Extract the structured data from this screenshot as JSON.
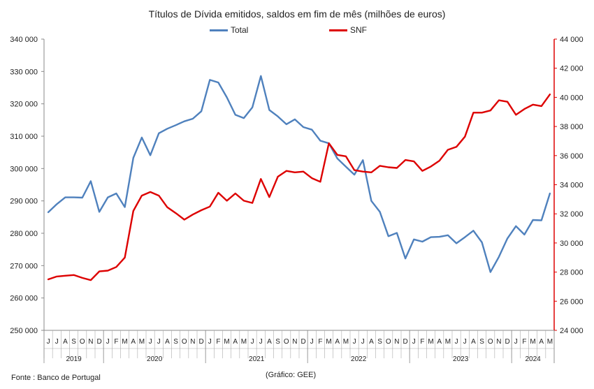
{
  "chart_data": {
    "type": "line",
    "title": "Títulos de Dívida emitidos, saldos em fim de mês  (milhões de euros)",
    "months": [
      "J",
      "J",
      "A",
      "S",
      "O",
      "N",
      "D",
      "J",
      "F",
      "M",
      "A",
      "M",
      "J",
      "J",
      "A",
      "S",
      "O",
      "N",
      "D",
      "J",
      "F",
      "M",
      "A",
      "M",
      "J",
      "J",
      "A",
      "S",
      "O",
      "N",
      "D",
      "J",
      "F",
      "M",
      "A",
      "M",
      "J",
      "J",
      "A",
      "S",
      "O",
      "N",
      "D",
      "J",
      "F",
      "M",
      "A",
      "M",
      "J",
      "J",
      "A",
      "S",
      "O",
      "N",
      "D",
      "J",
      "F",
      "M",
      "A",
      "M"
    ],
    "years": [
      {
        "label": "2019",
        "count": 7
      },
      {
        "label": "2020",
        "count": 12
      },
      {
        "label": "2021",
        "count": 12
      },
      {
        "label": "2022",
        "count": 12
      },
      {
        "label": "2023",
        "count": 12
      },
      {
        "label": "2024",
        "count": 5
      }
    ],
    "y_left": {
      "min": 250000,
      "max": 340000,
      "step": 10000,
      "ticks": [
        "250 000",
        "260 000",
        "270 000",
        "280 000",
        "290 000",
        "300 000",
        "310 000",
        "320 000",
        "330 000",
        "340 000"
      ]
    },
    "y_right": {
      "min": 24000,
      "max": 44000,
      "step": 2000,
      "ticks": [
        "24 000",
        "26 000",
        "28 000",
        "30 000",
        "32 000",
        "34 000",
        "36 000",
        "38 000",
        "40 000",
        "42 000",
        "44 000"
      ]
    },
    "series": [
      {
        "name": "Total",
        "color": "#4f81bd",
        "axis": "left",
        "values": [
          286500,
          289000,
          291100,
          291100,
          291000,
          296100,
          286600,
          291100,
          292300,
          288100,
          303300,
          309600,
          304100,
          310900,
          312300,
          313400,
          314600,
          315400,
          317700,
          327400,
          326600,
          322000,
          316600,
          315600,
          318900,
          328600,
          318100,
          316100,
          313700,
          315200,
          312800,
          312000,
          308600,
          307800,
          303100,
          300600,
          298100,
          302600,
          290000,
          286600,
          279100,
          280100,
          272200,
          278100,
          277400,
          278800,
          278900,
          279400,
          276900,
          278800,
          280800,
          277200,
          268000,
          272700,
          278400,
          282200,
          279600,
          284100,
          284000,
          292300
        ]
      },
      {
        "name": "SNF",
        "color": "#dd0000",
        "axis": "right",
        "values": [
          27500,
          27700,
          27750,
          27800,
          27600,
          27450,
          28050,
          28100,
          28350,
          29000,
          32200,
          33250,
          33500,
          33250,
          32450,
          32050,
          31600,
          31950,
          32250,
          32500,
          33450,
          32900,
          33400,
          32900,
          32750,
          34400,
          33150,
          34550,
          34950,
          34850,
          34900,
          34450,
          34200,
          36850,
          36050,
          35950,
          35000,
          34900,
          34850,
          35300,
          35200,
          35150,
          35700,
          35600,
          34950,
          35250,
          35650,
          36400,
          36600,
          37300,
          38950,
          38950,
          39100,
          39800,
          39700,
          38800,
          39200,
          39500,
          39400,
          40200
        ]
      }
    ]
  },
  "source_note": "Fonte : Banco de Portugal",
  "credit_note": "(Gráfico: GEE)"
}
